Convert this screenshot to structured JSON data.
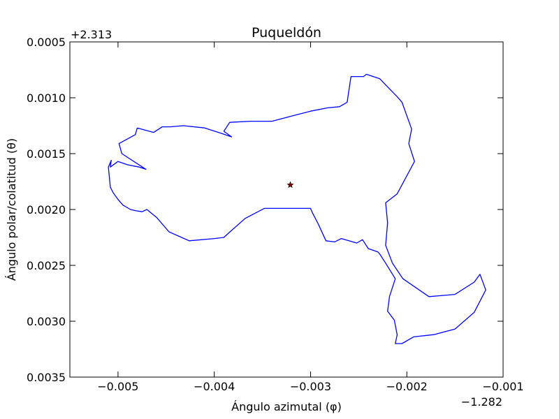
{
  "chart_data": {
    "type": "line",
    "title": "Puqueldón",
    "xlabel": "Ángulo azimutal (φ)",
    "ylabel": "Ángulo polar/colatitud (θ)",
    "x_offset_label": "−1.282",
    "y_offset_label": "+2.313",
    "x_offset": -1.282,
    "y_offset": 2.313,
    "xlim": [
      -0.0055,
      -0.001
    ],
    "ylim": [
      0.0035,
      0.0005
    ],
    "y_inverted": true,
    "grid": false,
    "x_ticks": [
      {
        "value": -0.005,
        "label": "−0.005"
      },
      {
        "value": -0.004,
        "label": "−0.004"
      },
      {
        "value": -0.003,
        "label": "−0.003"
      },
      {
        "value": -0.002,
        "label": "−0.002"
      },
      {
        "value": -0.001,
        "label": "−0.001"
      }
    ],
    "y_ticks": [
      {
        "value": 0.0005,
        "label": "0.0005"
      },
      {
        "value": 0.001,
        "label": "0.0010"
      },
      {
        "value": 0.0015,
        "label": "0.0015"
      },
      {
        "value": 0.002,
        "label": "0.0020"
      },
      {
        "value": 0.0025,
        "label": "0.0025"
      },
      {
        "value": 0.003,
        "label": "0.0030"
      },
      {
        "value": 0.0035,
        "label": "0.0035"
      }
    ],
    "series": [
      {
        "kind": "outline",
        "color": "#0000ff",
        "x": [
          -0.0048,
          -0.00463,
          -0.00454,
          -0.00446,
          -0.00432,
          -0.0041,
          -0.00392,
          -0.00382,
          -0.0039,
          -0.00384,
          -0.00362,
          -0.0034,
          -0.00318,
          -0.003,
          -0.00282,
          -0.0027,
          -0.00262,
          -0.00258,
          -0.00245,
          -0.00242,
          -0.00228,
          -0.00218,
          -0.0021,
          -0.00205,
          -0.00195,
          -0.00198,
          -0.00192,
          -0.0021,
          -0.00222,
          -0.0022,
          -0.00222,
          -0.00215,
          -0.00204,
          -0.00177,
          -0.0015,
          -0.0013,
          -0.00124,
          -0.00118,
          -0.0013,
          -0.0015,
          -0.00172,
          -0.00193,
          -0.00205,
          -0.00212,
          -0.0021,
          -0.00213,
          -0.0022,
          -0.00218,
          -0.00212,
          -0.00222,
          -0.00228,
          -0.0023,
          -0.0024,
          -0.00246,
          -0.00252,
          -0.00268,
          -0.00275,
          -0.00284,
          -0.00292,
          -0.00298,
          -0.003,
          -0.00306,
          -0.00328,
          -0.00348,
          -0.00368,
          -0.00385,
          -0.0039,
          -0.004,
          -0.00426,
          -0.00447,
          -0.0046,
          -0.0047,
          -0.00475,
          -0.00482,
          -0.00487,
          -0.00495,
          -0.005,
          -0.00505,
          -0.00508,
          -0.0051,
          -0.00507,
          -0.00508,
          -0.005,
          -0.0049,
          -0.00478,
          -0.00471,
          -0.00496,
          -0.00499,
          -0.00482,
          -0.0048
        ],
        "y": [
          0.00127,
          0.00131,
          0.00126,
          0.00126,
          0.00125,
          0.00127,
          0.00132,
          0.00135,
          0.0013,
          0.00122,
          0.00121,
          0.00121,
          0.00116,
          0.00112,
          0.00109,
          0.00108,
          0.00104,
          0.00081,
          0.00081,
          0.00079,
          0.00083,
          0.00092,
          0.00099,
          0.00104,
          0.00128,
          0.00141,
          0.00157,
          0.00186,
          0.00194,
          0.00212,
          0.00232,
          0.00248,
          0.00262,
          0.00278,
          0.00276,
          0.00265,
          0.00258,
          0.00272,
          0.00292,
          0.00307,
          0.00312,
          0.00314,
          0.0032,
          0.0032,
          0.00312,
          0.00299,
          0.00291,
          0.00278,
          0.00262,
          0.00248,
          0.0024,
          0.00238,
          0.00235,
          0.00227,
          0.0023,
          0.00226,
          0.00229,
          0.00228,
          0.00213,
          0.00203,
          0.00199,
          0.00199,
          0.00199,
          0.00199,
          0.00208,
          0.00221,
          0.00225,
          0.00226,
          0.00228,
          0.0022,
          0.00207,
          0.002,
          0.00202,
          0.00201,
          0.002,
          0.00196,
          0.00191,
          0.00185,
          0.0018,
          0.00162,
          0.00156,
          0.00162,
          0.00157,
          0.0016,
          0.00162,
          0.00164,
          0.0015,
          0.00141,
          0.00133,
          0.00127
        ]
      },
      {
        "kind": "marker",
        "name": "",
        "color": "#8b0000",
        "x": [
          -0.00321
        ],
        "y": [
          0.00178
        ]
      }
    ]
  }
}
